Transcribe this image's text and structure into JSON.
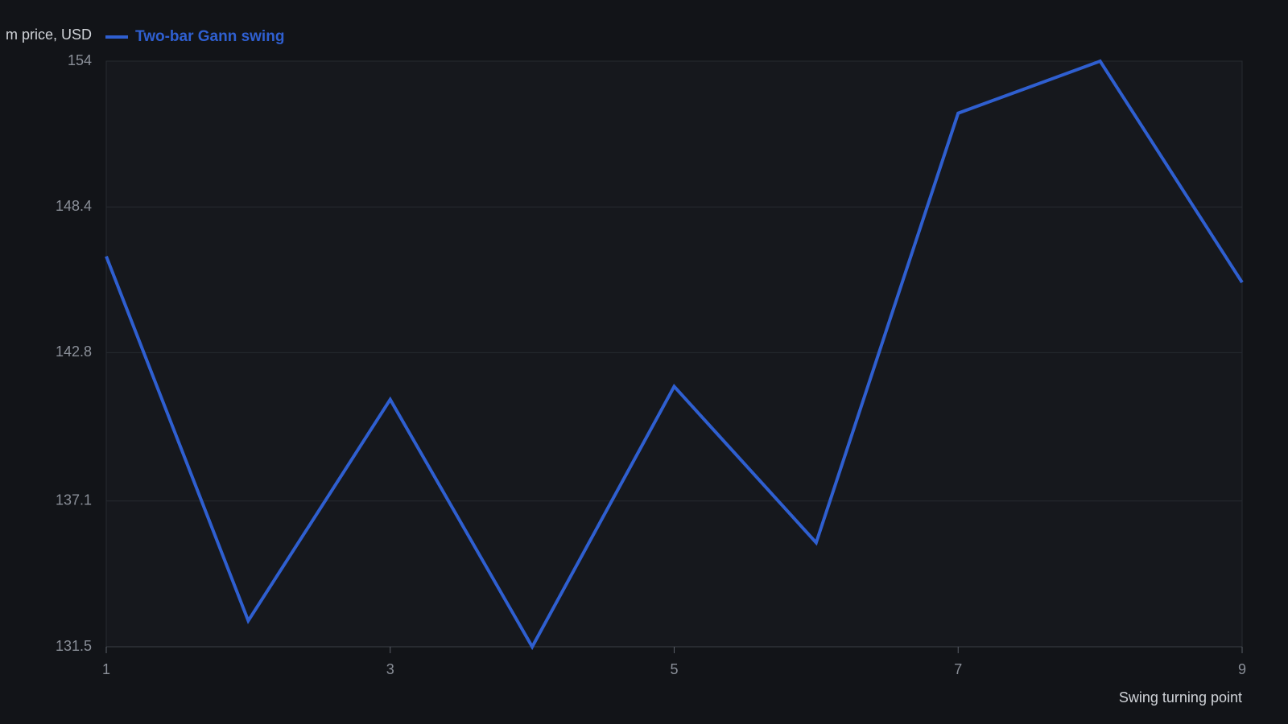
{
  "chart_data": {
    "type": "line",
    "y_label": "m price, USD",
    "x_label": "Swing turning point",
    "x": [
      1,
      2,
      3,
      4,
      5,
      6,
      7,
      8,
      9
    ],
    "series": [
      {
        "name": "Two-bar Gann swing",
        "color": "#2f5fd0",
        "values": [
          146.5,
          132.5,
          141.0,
          131.5,
          141.5,
          135.5,
          152.0,
          154.0,
          145.5
        ]
      }
    ],
    "xlim": [
      1,
      9
    ],
    "xticks": [
      1,
      3,
      5,
      7,
      9
    ],
    "ylim": [
      131.5,
      154
    ],
    "yticks": [
      131.5,
      137.1,
      142.8,
      148.4,
      154
    ],
    "grid": true
  }
}
